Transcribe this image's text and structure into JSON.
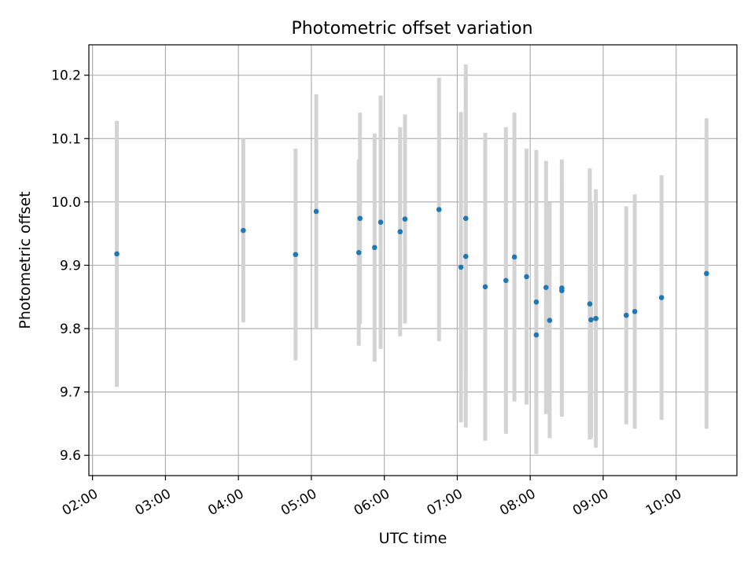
{
  "chart_data": {
    "type": "scatter",
    "title": "Photometric offset variation",
    "xlabel": "UTC time",
    "ylabel": "Photometric offset",
    "x_tick_labels": [
      "02:00",
      "03:00",
      "04:00",
      "05:00",
      "06:00",
      "07:00",
      "08:00",
      "09:00",
      "10:00"
    ],
    "y_tick_labels": [
      "9.6",
      "9.7",
      "9.8",
      "9.9",
      "10.0",
      "10.1",
      "10.2"
    ],
    "xlim": [
      "01:57",
      "10:50"
    ],
    "ylim": [
      9.568,
      10.248
    ],
    "grid": true,
    "points": [
      {
        "x": "02:20",
        "y": 9.918,
        "err": 0.21
      },
      {
        "x": "04:04",
        "y": 9.955,
        "err": 0.145
      },
      {
        "x": "04:47",
        "y": 9.917,
        "err": 0.167
      },
      {
        "x": "05:04",
        "y": 9.985,
        "err": 0.185
      },
      {
        "x": "05:39",
        "y": 9.92,
        "err": 0.147
      },
      {
        "x": "05:40",
        "y": 9.974,
        "err": 0.167
      },
      {
        "x": "05:52",
        "y": 9.928,
        "err": 0.18
      },
      {
        "x": "05:57",
        "y": 9.968,
        "err": 0.2
      },
      {
        "x": "06:13",
        "y": 9.953,
        "err": 0.165
      },
      {
        "x": "06:17",
        "y": 9.973,
        "err": 0.165
      },
      {
        "x": "06:45",
        "y": 9.988,
        "err": 0.208
      },
      {
        "x": "07:03",
        "y": 9.897,
        "err": 0.245
      },
      {
        "x": "07:07",
        "y": 9.974,
        "err": 0.243
      },
      {
        "x": "07:07",
        "y": 9.914,
        "err": 0.27
      },
      {
        "x": "07:23",
        "y": 9.866,
        "err": 0.243
      },
      {
        "x": "07:40",
        "y": 9.876,
        "err": 0.242
      },
      {
        "x": "07:47",
        "y": 9.913,
        "err": 0.228
      },
      {
        "x": "07:57",
        "y": 9.882,
        "err": 0.202
      },
      {
        "x": "08:05",
        "y": 9.842,
        "err": 0.24
      },
      {
        "x": "08:05",
        "y": 9.79,
        "err": 0.182
      },
      {
        "x": "08:13",
        "y": 9.865,
        "err": 0.2
      },
      {
        "x": "08:16",
        "y": 9.813,
        "err": 0.186
      },
      {
        "x": "08:26",
        "y": 9.864,
        "err": 0.203
      },
      {
        "x": "08:26",
        "y": 9.86,
        "err": 0.163
      },
      {
        "x": "08:49",
        "y": 9.839,
        "err": 0.214
      },
      {
        "x": "08:50",
        "y": 9.814,
        "err": 0.187
      },
      {
        "x": "08:54",
        "y": 9.816,
        "err": 0.204
      },
      {
        "x": "09:19",
        "y": 9.821,
        "err": 0.172
      },
      {
        "x": "09:26",
        "y": 9.827,
        "err": 0.185
      },
      {
        "x": "09:48",
        "y": 9.849,
        "err": 0.193
      },
      {
        "x": "10:25",
        "y": 9.887,
        "err": 0.245
      }
    ],
    "colors": {
      "point": "#1f77b4",
      "errorbar": "#d3d3d3",
      "grid": "#b0b0b0"
    }
  }
}
